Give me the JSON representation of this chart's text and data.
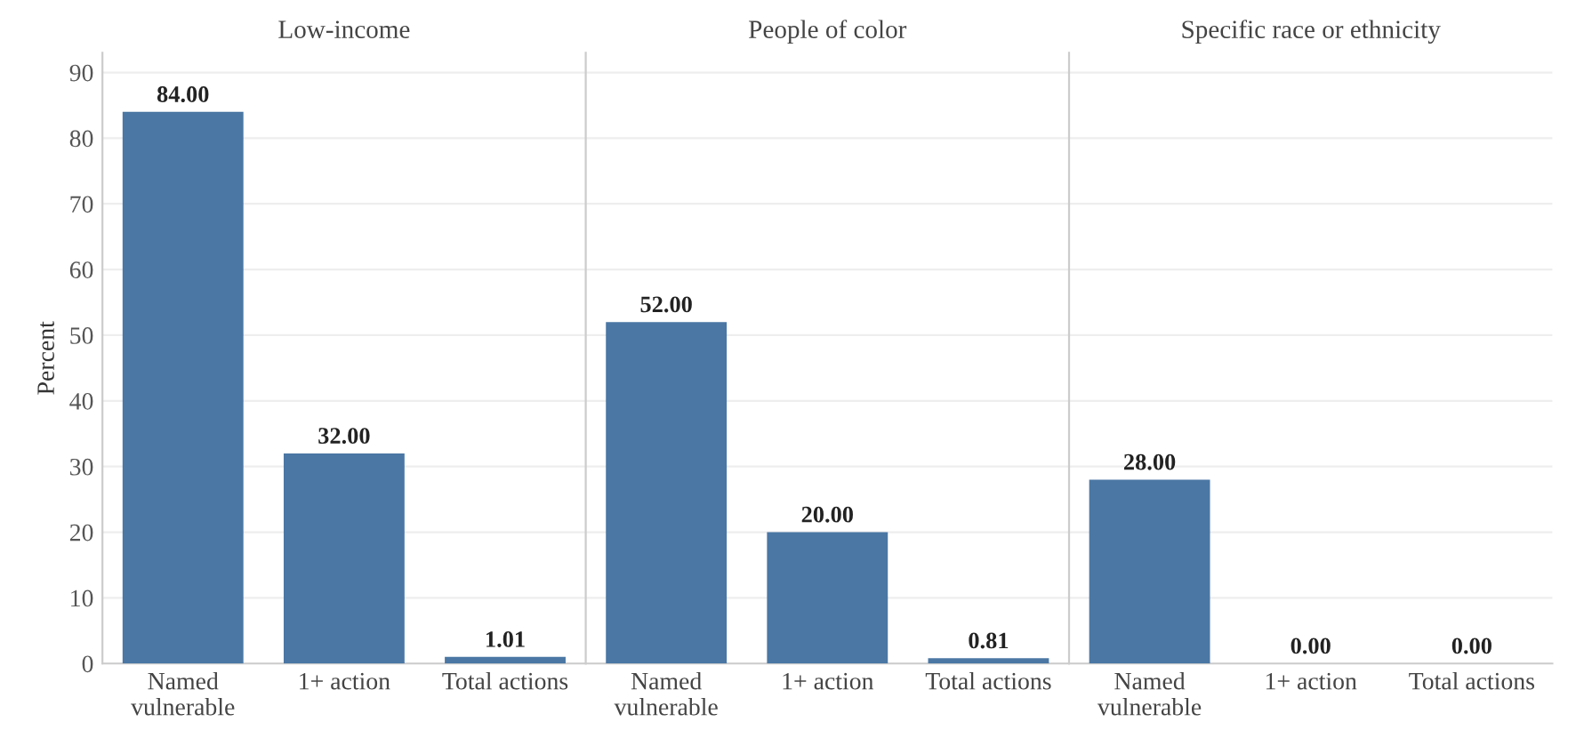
{
  "chart_data": [
    {
      "type": "bar",
      "title": "Low-income",
      "ylabel": "Percent",
      "categories": [
        "Named\nvulnerable",
        "1+ action",
        "Total actions"
      ],
      "values": [
        84.0,
        32.0,
        1.01
      ],
      "color": "#4a77a4",
      "value_labels": [
        "84.00",
        "32.00",
        "1.01"
      ],
      "ylim": [
        0,
        93
      ],
      "yticks": [
        0,
        10,
        20,
        30,
        40,
        50,
        60,
        70,
        80,
        90
      ],
      "grid": "y"
    },
    {
      "type": "bar",
      "title": "People of color",
      "categories": [
        "Named\nvulnerable",
        "1+ action",
        "Total actions"
      ],
      "values": [
        52.0,
        20.0,
        0.81
      ],
      "color": "#4a77a4",
      "value_labels": [
        "52.00",
        "20.00",
        "0.81"
      ],
      "ylim": [
        0,
        93
      ],
      "yticks": [
        0,
        10,
        20,
        30,
        40,
        50,
        60,
        70,
        80,
        90
      ],
      "grid": "y",
      "tick_labels": "x"
    },
    {
      "type": "bar",
      "title": "Specific race or ethnicity",
      "categories": [
        "Named\nvulnerable",
        "1+ action",
        "Total actions"
      ],
      "values": [
        28.0,
        0.0,
        0.0
      ],
      "color": "#4a77a4",
      "value_labels": [
        "28.00",
        "0.00",
        "0.00"
      ],
      "ylim": [
        0,
        93
      ],
      "yticks": [
        0,
        10,
        20,
        30,
        40,
        50,
        60,
        70,
        80,
        90
      ],
      "grid": "y",
      "tick_labels": "x"
    }
  ]
}
